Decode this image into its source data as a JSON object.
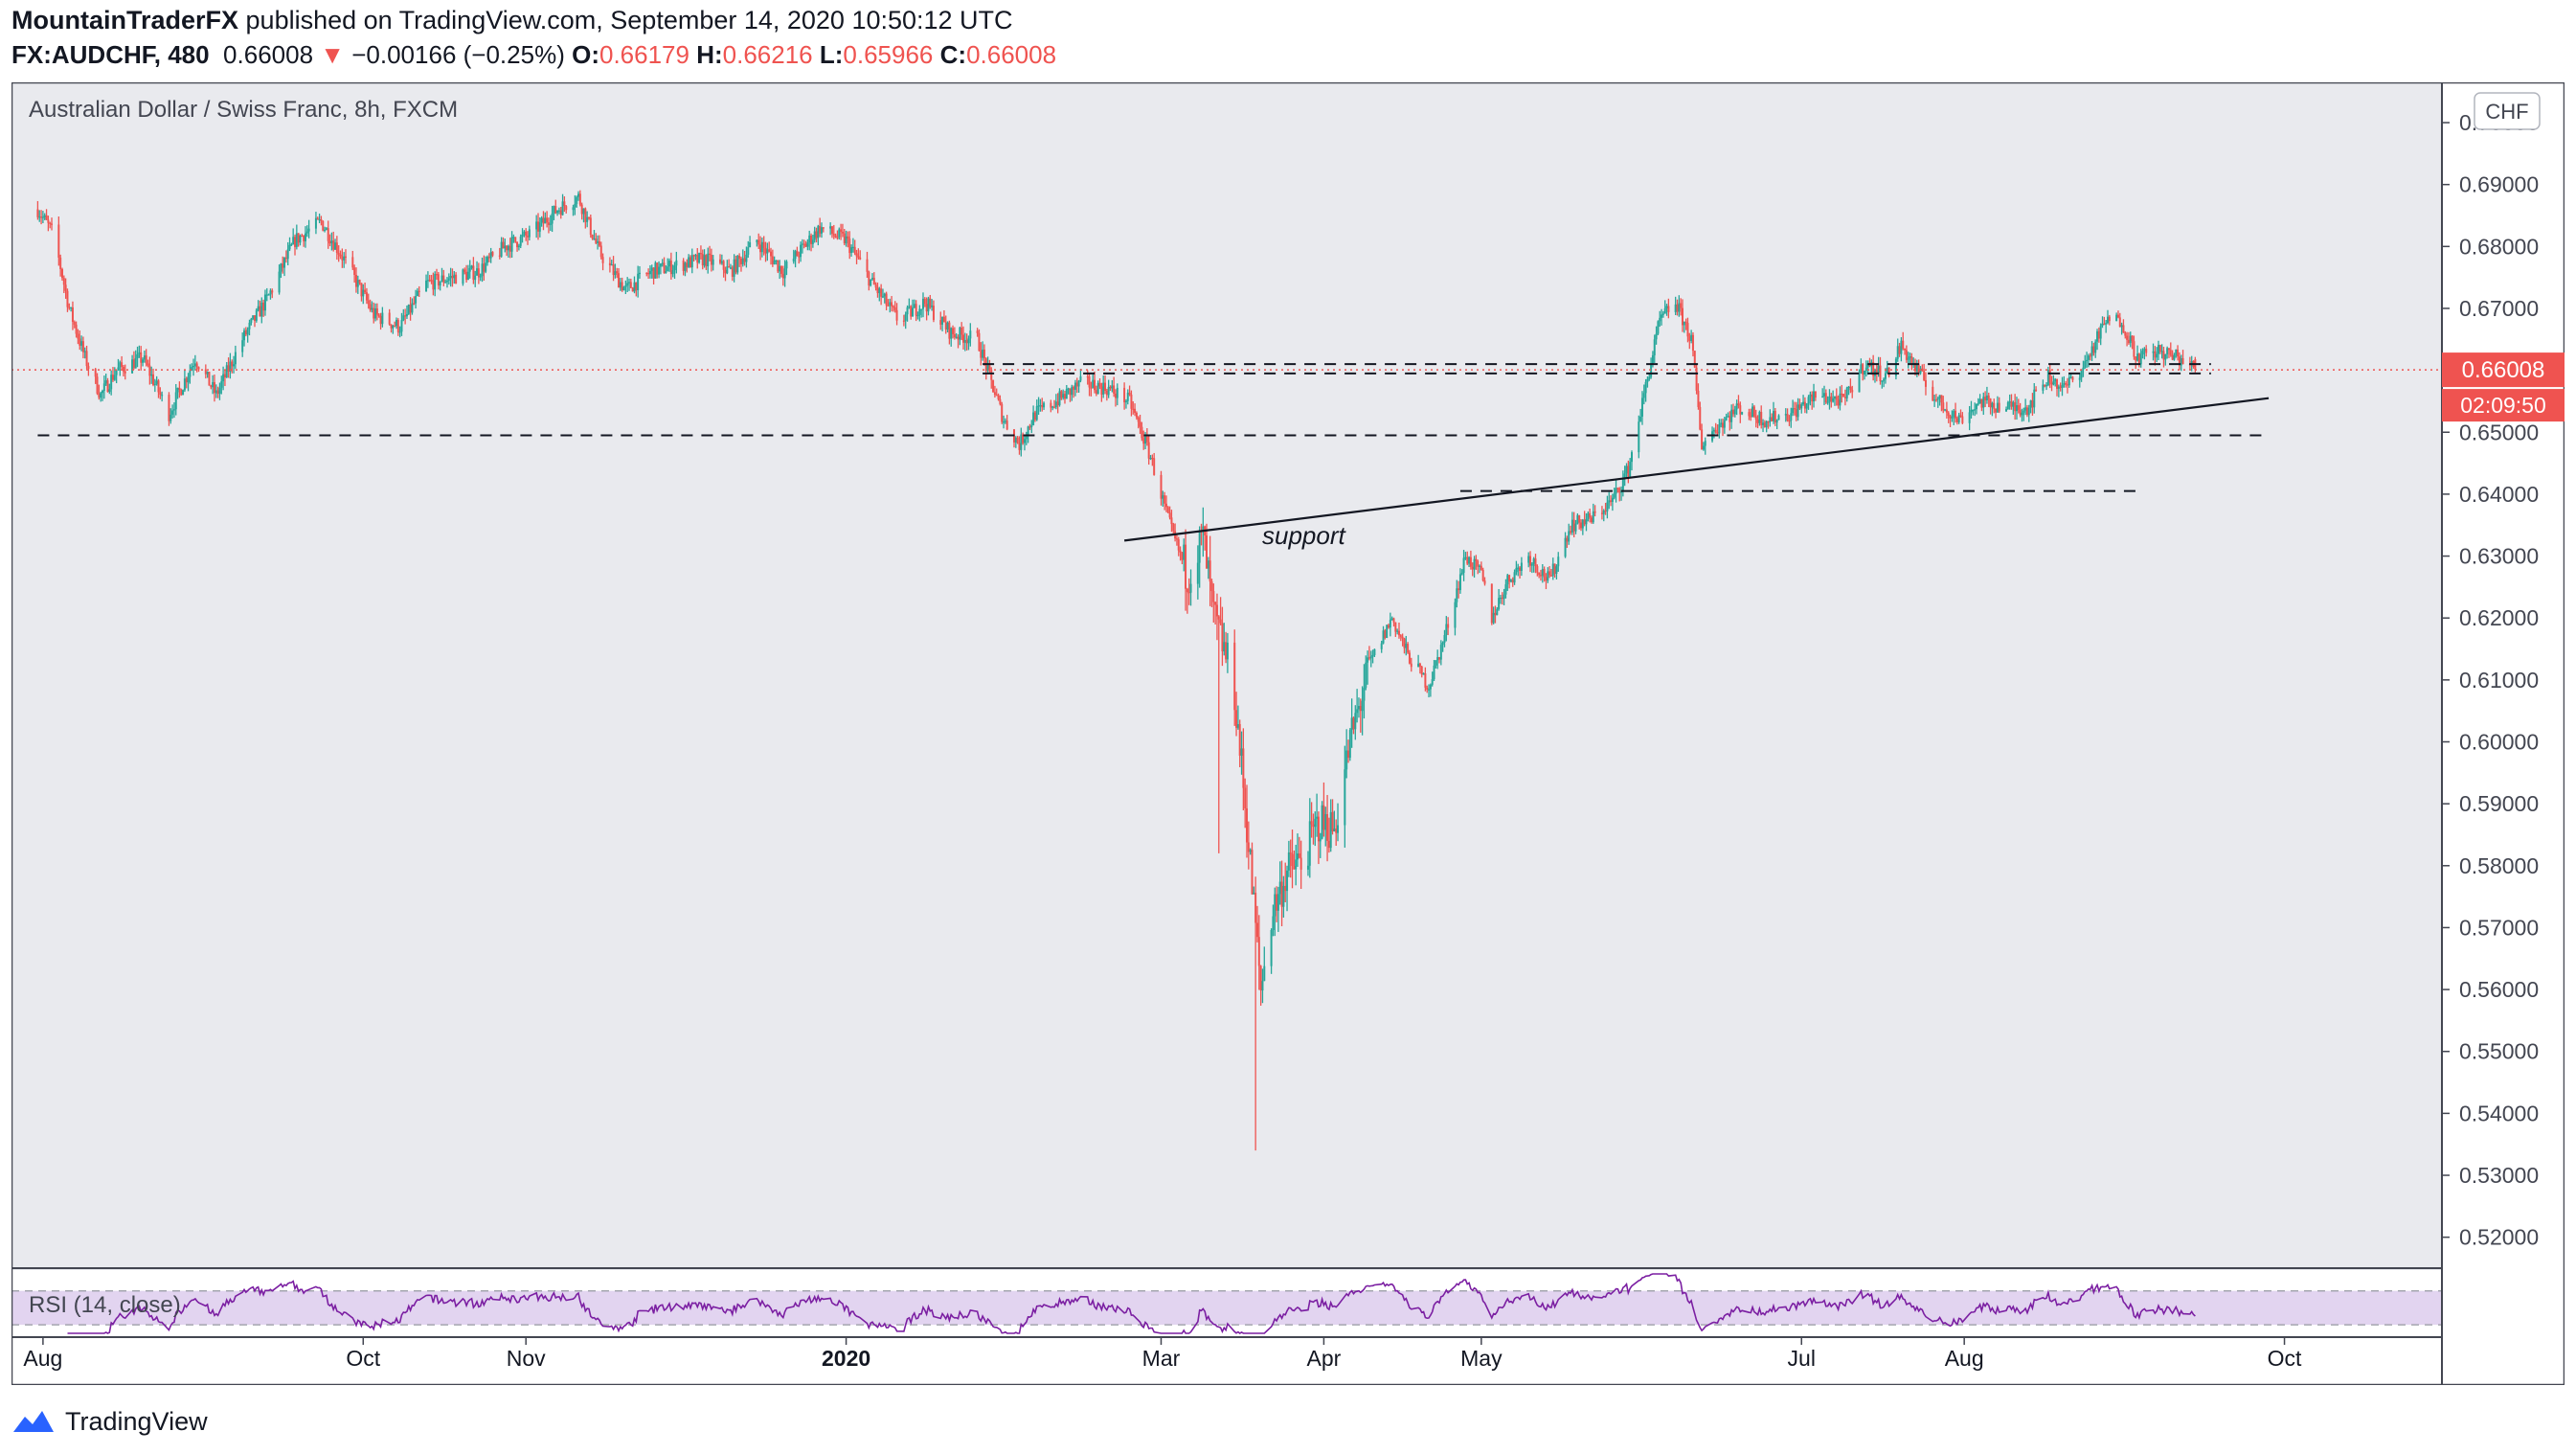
{
  "header": {
    "author": "MountainTraderFX",
    "published_text": "published on TradingView.com, September 14, 2020 10:50:12 UTC",
    "symbol": "FX:AUDCHF, 480",
    "last": "0.66008",
    "change_arrow": "▼",
    "change": "−0.00166 (−0.25%)",
    "o_label": "O:",
    "o_value": "0.66179",
    "h_label": "H:",
    "h_value": "0.66216",
    "l_label": "L:",
    "l_value": "0.65966",
    "c_label": "C:",
    "c_value": "0.66008"
  },
  "chart": {
    "legend_title": "Australian Dollar / Swiss Franc, 8h, FXCM",
    "currency_badge": "CHF",
    "price_badge": "0.66008",
    "countdown_badge": "02:09:50",
    "annotation": "support",
    "rsi_label": "RSI (14, close)",
    "footer_brand": "TradingView"
  },
  "colors": {
    "up": "#26a69a",
    "down": "#ef5350",
    "background": "#e9eaee",
    "rsi_line": "#7b1fa2",
    "rsi_band": "#e2d4f0"
  },
  "chart_data": {
    "type": "candlestick",
    "title": "Australian Dollar / Swiss Franc, 8h, FXCM",
    "ylim": [
      0.515,
      0.7065
    ],
    "y_ticks": [
      "0.70000",
      "0.69000",
      "0.68000",
      "0.67000",
      "0.66000",
      "0.65000",
      "0.64000",
      "0.63000",
      "0.62000",
      "0.61000",
      "0.60000",
      "0.59000",
      "0.58000",
      "0.57000",
      "0.56000",
      "0.55000",
      "0.54000",
      "0.53000",
      "0.52000"
    ],
    "x_ticks": [
      {
        "label": "Aug",
        "date": "2019-08-01"
      },
      {
        "label": "Oct",
        "date": "2019-10-01"
      },
      {
        "label": "Nov",
        "date": "2019-11-01"
      },
      {
        "label": "2020",
        "date": "2020-01-01"
      },
      {
        "label": "Mar",
        "date": "2020-03-01"
      },
      {
        "label": "Apr",
        "date": "2020-04-01"
      },
      {
        "label": "May",
        "date": "2020-05-01"
      },
      {
        "label": "Jul",
        "date": "2020-07-01"
      },
      {
        "label": "Aug",
        "date": "2020-08-01"
      },
      {
        "label": "Oct",
        "date": "2020-10-01"
      }
    ],
    "price_path": [
      [
        "2019-07-31",
        0.686
      ],
      [
        "2019-08-03",
        0.682
      ],
      [
        "2019-08-06",
        0.67
      ],
      [
        "2019-08-09",
        0.662
      ],
      [
        "2019-08-12",
        0.656
      ],
      [
        "2019-08-15",
        0.66
      ],
      [
        "2019-08-20",
        0.662
      ],
      [
        "2019-08-25",
        0.653
      ],
      [
        "2019-08-30",
        0.662
      ],
      [
        "2019-09-03",
        0.656
      ],
      [
        "2019-09-08",
        0.665
      ],
      [
        "2019-09-13",
        0.672
      ],
      [
        "2019-09-18",
        0.681
      ],
      [
        "2019-09-23",
        0.684
      ],
      [
        "2019-09-28",
        0.677
      ],
      [
        "2019-10-03",
        0.669
      ],
      [
        "2019-10-08",
        0.667
      ],
      [
        "2019-10-13",
        0.674
      ],
      [
        "2019-10-18",
        0.675
      ],
      [
        "2019-10-23",
        0.676
      ],
      [
        "2019-10-28",
        0.68
      ],
      [
        "2019-11-02",
        0.682
      ],
      [
        "2019-11-07",
        0.686
      ],
      [
        "2019-11-11",
        0.688
      ],
      [
        "2019-11-15",
        0.679
      ],
      [
        "2019-11-20",
        0.673
      ],
      [
        "2019-11-25",
        0.676
      ],
      [
        "2019-11-30",
        0.677
      ],
      [
        "2019-12-05",
        0.678
      ],
      [
        "2019-12-10",
        0.676
      ],
      [
        "2019-12-15",
        0.681
      ],
      [
        "2019-12-20",
        0.676
      ],
      [
        "2019-12-27",
        0.683
      ],
      [
        "2020-01-01",
        0.681
      ],
      [
        "2020-01-06",
        0.674
      ],
      [
        "2020-01-11",
        0.668
      ],
      [
        "2020-01-16",
        0.671
      ],
      [
        "2020-01-21",
        0.666
      ],
      [
        "2020-01-26",
        0.665
      ],
      [
        "2020-01-31",
        0.652
      ],
      [
        "2020-02-03",
        0.648
      ],
      [
        "2020-02-06",
        0.653
      ],
      [
        "2020-02-10",
        0.655
      ],
      [
        "2020-02-15",
        0.658
      ],
      [
        "2020-02-20",
        0.657
      ],
      [
        "2020-02-24",
        0.655
      ],
      [
        "2020-02-28",
        0.646
      ],
      [
        "2020-03-03",
        0.634
      ],
      [
        "2020-03-06",
        0.627
      ],
      [
        "2020-03-09",
        0.633
      ],
      [
        "2020-03-11",
        0.62
      ],
      [
        "2020-03-13",
        0.615
      ],
      [
        "2020-03-15",
        0.608
      ],
      [
        "2020-03-17",
        0.59
      ],
      [
        "2020-03-19",
        0.57
      ],
      [
        "2020-03-20",
        0.56
      ],
      [
        "2020-03-22",
        0.572
      ],
      [
        "2020-03-25",
        0.579
      ],
      [
        "2020-03-28",
        0.581
      ],
      [
        "2020-03-31",
        0.587
      ],
      [
        "2020-04-03",
        0.586
      ],
      [
        "2020-04-06",
        0.6
      ],
      [
        "2020-04-10",
        0.613
      ],
      [
        "2020-04-14",
        0.62
      ],
      [
        "2020-04-17",
        0.614
      ],
      [
        "2020-04-21",
        0.609
      ],
      [
        "2020-04-24",
        0.617
      ],
      [
        "2020-04-28",
        0.63
      ],
      [
        "2020-05-01",
        0.627
      ],
      [
        "2020-05-03",
        0.62
      ],
      [
        "2020-05-06",
        0.626
      ],
      [
        "2020-05-10",
        0.63
      ],
      [
        "2020-05-14",
        0.626
      ],
      [
        "2020-05-18",
        0.635
      ],
      [
        "2020-05-22",
        0.636
      ],
      [
        "2020-05-26",
        0.639
      ],
      [
        "2020-05-29",
        0.644
      ],
      [
        "2020-06-01",
        0.656
      ],
      [
        "2020-06-04",
        0.668
      ],
      [
        "2020-06-07",
        0.671
      ],
      [
        "2020-06-10",
        0.665
      ],
      [
        "2020-06-12",
        0.648
      ],
      [
        "2020-06-15",
        0.651
      ],
      [
        "2020-06-19",
        0.654
      ],
      [
        "2020-06-24",
        0.652
      ],
      [
        "2020-06-29",
        0.653
      ],
      [
        "2020-07-04",
        0.656
      ],
      [
        "2020-07-09",
        0.655
      ],
      [
        "2020-07-13",
        0.661
      ],
      [
        "2020-07-17",
        0.659
      ],
      [
        "2020-07-20",
        0.664
      ],
      [
        "2020-07-23",
        0.66
      ],
      [
        "2020-07-27",
        0.655
      ],
      [
        "2020-07-31",
        0.652
      ],
      [
        "2020-08-04",
        0.655
      ],
      [
        "2020-08-09",
        0.654
      ],
      [
        "2020-08-13",
        0.654
      ],
      [
        "2020-08-17",
        0.659
      ],
      [
        "2020-08-20",
        0.657
      ],
      [
        "2020-08-24",
        0.661
      ],
      [
        "2020-08-28",
        0.668
      ],
      [
        "2020-08-31",
        0.668
      ],
      [
        "2020-09-03",
        0.662
      ],
      [
        "2020-09-07",
        0.663
      ],
      [
        "2020-09-11",
        0.662
      ],
      [
        "2020-09-14",
        0.6601
      ]
    ],
    "extreme_wicks": [
      {
        "date": "2020-03-19",
        "low": 0.534
      },
      {
        "date": "2020-03-12",
        "low": 0.582
      }
    ],
    "annotations": [
      {
        "type": "hline",
        "price": 0.661,
        "from": "2020-01-27",
        "to": "2020-09-17",
        "style": "dashed"
      },
      {
        "type": "hline",
        "price": 0.6595,
        "from": "2020-01-27",
        "to": "2020-09-17",
        "style": "dashed"
      },
      {
        "type": "hline",
        "price": 0.6495,
        "from": "2019-07-31",
        "to": "2020-09-27",
        "style": "dashed"
      },
      {
        "type": "hline",
        "price": 0.6405,
        "from": "2020-04-27",
        "to": "2020-09-04",
        "style": "dashed"
      },
      {
        "type": "trendline",
        "from": {
          "date": "2020-02-23",
          "price": 0.6325
        },
        "to": {
          "date": "2020-09-28",
          "price": 0.6555
        },
        "label": "support"
      }
    ]
  }
}
